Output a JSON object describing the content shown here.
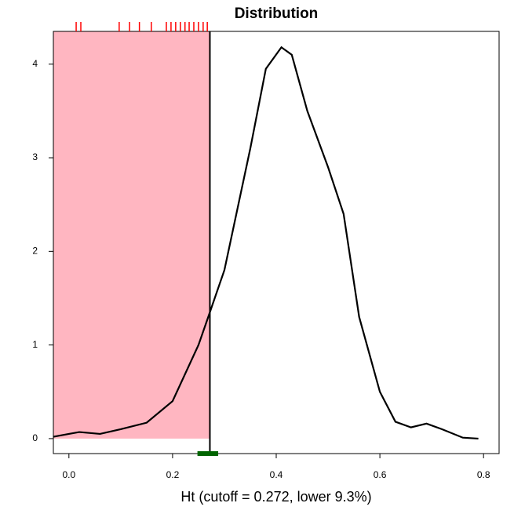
{
  "chart_data": {
    "type": "density",
    "title": "Distribution",
    "x_label": "Ht (cutoff = 0.272, lower 9.3%)",
    "x": [
      -0.03,
      0.0,
      0.02,
      0.06,
      0.1,
      0.15,
      0.2,
      0.25,
      0.272,
      0.3,
      0.35,
      0.38,
      0.41,
      0.43,
      0.46,
      0.5,
      0.53,
      0.56,
      0.6,
      0.63,
      0.66,
      0.69,
      0.72,
      0.76,
      0.79
    ],
    "values": [
      0.02,
      0.05,
      0.07,
      0.05,
      0.1,
      0.17,
      0.4,
      1.0,
      1.35,
      1.8,
      3.1,
      3.95,
      4.18,
      4.1,
      3.5,
      2.9,
      2.4,
      1.3,
      0.5,
      0.18,
      0.12,
      0.16,
      0.1,
      0.01,
      0.0
    ],
    "color": "#000000",
    "cutoff": 0.272,
    "shade_color": "#ffb6c1",
    "rug": [
      0.014,
      0.023,
      0.097,
      0.117,
      0.136,
      0.159,
      0.188,
      0.197,
      0.206,
      0.215,
      0.224,
      0.232,
      0.241,
      0.25,
      0.259,
      0.267
    ],
    "rug_color": "#ff0000",
    "interval": [
      0.248,
      0.288
    ],
    "interval_color": "#006400",
    "xlim": [
      -0.03,
      0.83
    ],
    "ylim": [
      -0.16,
      4.35
    ],
    "xticks": [
      {
        "value": 0,
        "label": "0.0"
      },
      0.2,
      0.4,
      0.6,
      0.8
    ],
    "yticks": [
      0,
      1,
      2,
      3,
      4
    ]
  }
}
